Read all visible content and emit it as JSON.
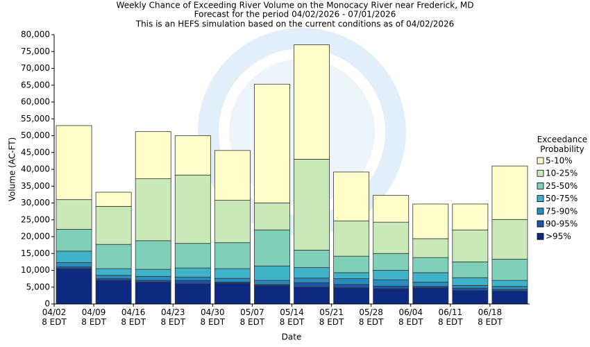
{
  "chart_data": {
    "type": "bar",
    "stacked": true,
    "title": "Weekly Chance of Exceeding River Volume on the Monocacy River near Frederick, MD",
    "subtitle": "Forecast for the period 04/02/2026 - 07/01/2026",
    "note": "This is an HEFS simulation based on the current conditions as of 04/02/2026",
    "x_label": "Date",
    "y_label": "Volume (AC-FT)",
    "legend_title": "Exceedance\nProbability",
    "legend_position": "right",
    "categories": [
      "04/02\n8 EDT",
      "04/09\n8 EDT",
      "04/16\n8 EDT",
      "04/23\n8 EDT",
      "04/30\n8 EDT",
      "05/07\n8 EDT",
      "05/14\n8 EDT",
      "05/21\n8 EDT",
      "05/28\n8 EDT",
      "06/04\n8 EDT",
      "06/11\n8 EDT",
      "06/18\n8 EDT"
    ],
    "series": [
      {
        "name": ">95%",
        "color": "#0d2a80",
        "values": [
          10500,
          7000,
          6500,
          6000,
          6200,
          5500,
          5000,
          4800,
          4500,
          4800,
          4000,
          3800
        ]
      },
      {
        "name": "90-95%",
        "color": "#1f55a8",
        "values": [
          500,
          500,
          500,
          1000,
          300,
          300,
          1300,
          1000,
          800,
          400,
          700,
          500
        ]
      },
      {
        "name": "75-90%",
        "color": "#2a8cbc",
        "values": [
          1300,
          1000,
          1200,
          1000,
          1100,
          1200,
          1400,
          1700,
          1900,
          1300,
          800,
          900
        ]
      },
      {
        "name": "50-75%",
        "color": "#40b3c8",
        "values": [
          3400,
          2000,
          2100,
          2700,
          2900,
          4300,
          3100,
          1800,
          2800,
          2800,
          2300,
          1800
        ]
      },
      {
        "name": "25-50%",
        "color": "#80cfb9",
        "values": [
          6500,
          7200,
          8500,
          7300,
          7700,
          10700,
          5200,
          4900,
          5000,
          4500,
          4700,
          6300
        ]
      },
      {
        "name": "10-25%",
        "color": "#c9e9b9",
        "values": [
          8800,
          11300,
          18400,
          20300,
          12600,
          8000,
          27000,
          10500,
          9300,
          5600,
          9500,
          11800
        ]
      },
      {
        "name": "5-10%",
        "color": "#ffffcc",
        "values": [
          22000,
          4200,
          14000,
          11700,
          14800,
          35300,
          34000,
          14500,
          8000,
          10300,
          7700,
          15900
        ]
      }
    ],
    "ylim": [
      0,
      80000
    ],
    "yticks": [
      0,
      {
        "value": 5000,
        "label": "5,000"
      },
      {
        "value": 10000,
        "label": "10,000"
      },
      {
        "value": 15000,
        "label": "15,000"
      },
      {
        "value": 20000,
        "label": "20,000"
      },
      {
        "value": 25000,
        "label": "25,000"
      },
      {
        "value": 30000,
        "label": "30,000"
      },
      {
        "value": 35000,
        "label": "35,000"
      },
      {
        "value": 40000,
        "label": "40,000"
      },
      {
        "value": 45000,
        "label": "45,000"
      },
      {
        "value": 50000,
        "label": "50,000"
      },
      {
        "value": 55000,
        "label": "55,000"
      },
      {
        "value": 60000,
        "label": "60,000"
      },
      {
        "value": 65000,
        "label": "65,000"
      },
      {
        "value": 70000,
        "label": "70,000"
      },
      {
        "value": 75000,
        "label": "75,000"
      },
      {
        "value": 80000,
        "label": "80,000"
      }
    ],
    "grid": false
  }
}
